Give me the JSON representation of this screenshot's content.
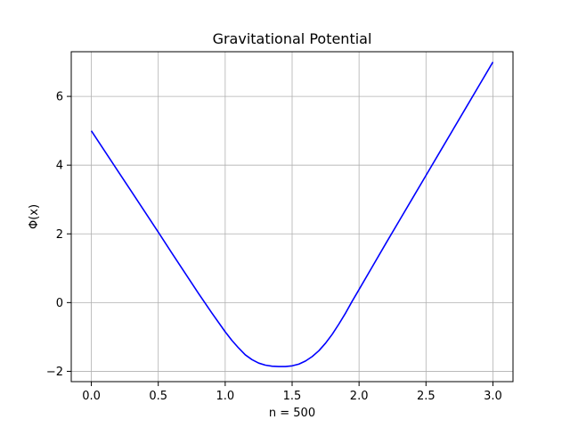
{
  "chart_data": {
    "type": "line",
    "title": "Gravitational Potential",
    "xlabel": "n = 500",
    "ylabel": "Φ(x)",
    "xlim": [
      -0.15,
      3.15
    ],
    "ylim": [
      -2.3,
      7.3
    ],
    "xticks": [
      0.0,
      0.5,
      1.0,
      1.5,
      2.0,
      2.5,
      3.0
    ],
    "xtick_labels": [
      "0.0",
      "0.5",
      "1.0",
      "1.5",
      "2.0",
      "2.5",
      "3.0"
    ],
    "yticks": [
      -2,
      0,
      2,
      4,
      6
    ],
    "ytick_labels": [
      "−2",
      "0",
      "2",
      "4",
      "6"
    ],
    "grid": true,
    "series": [
      {
        "color": "#0000ff",
        "x": [
          0.0,
          0.1,
          0.2,
          0.3,
          0.4,
          0.5,
          0.6,
          0.7,
          0.8,
          0.9,
          1.0,
          1.05,
          1.1,
          1.15,
          1.2,
          1.25,
          1.3,
          1.35,
          1.4,
          1.45,
          1.5,
          1.55,
          1.6,
          1.65,
          1.7,
          1.75,
          1.8,
          1.85,
          1.9,
          1.95,
          2.0,
          2.1,
          2.2,
          2.3,
          2.4,
          2.5,
          2.6,
          2.7,
          2.8,
          2.9,
          3.0
        ],
        "y": [
          5.0,
          4.41,
          3.82,
          3.23,
          2.64,
          2.05,
          1.45,
          0.86,
          0.27,
          -0.3,
          -0.85,
          -1.1,
          -1.32,
          -1.52,
          -1.66,
          -1.76,
          -1.82,
          -1.85,
          -1.86,
          -1.86,
          -1.84,
          -1.79,
          -1.7,
          -1.57,
          -1.4,
          -1.18,
          -0.92,
          -0.62,
          -0.3,
          0.05,
          0.38,
          1.05,
          1.72,
          2.38,
          3.04,
          3.7,
          4.36,
          5.02,
          5.68,
          6.34,
          7.0
        ]
      }
    ]
  }
}
